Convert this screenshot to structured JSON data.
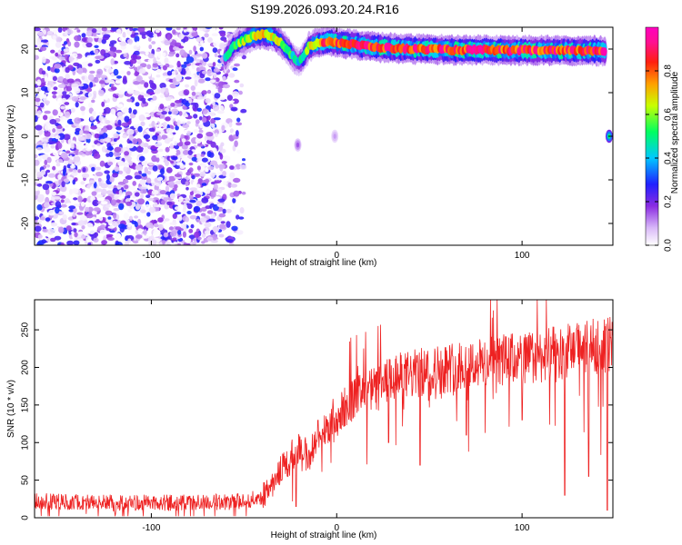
{
  "figure_title": "S199.2026.093.20.24.R16",
  "chart_data": [
    {
      "type": "heatmap",
      "title": "",
      "xlabel": "Height of straight line (km)",
      "ylabel": "Frequency (Hz)",
      "xlim": [
        -163,
        149
      ],
      "ylim": [
        -25,
        25
      ],
      "xticks": [
        -100,
        0,
        100
      ],
      "yticks": [
        -20,
        -10,
        0,
        10,
        20
      ],
      "colorbar": {
        "label": "Normalized spectral amplitude",
        "range": [
          0.0,
          1.0
        ],
        "ticks": [
          0.0,
          0.2,
          0.4,
          0.6,
          0.8
        ],
        "tick_labels": [
          "0.0",
          "0.2",
          "0.4",
          "0.6",
          "0.8"
        ],
        "colormap": "rainbow (violet-blue-cyan-green-yellow-red-magenta)"
      },
      "noise_region": {
        "x_range": [
          -163,
          -60
        ],
        "y_range": [
          -25,
          25
        ],
        "amplitude_range": [
          0.0,
          0.3
        ]
      },
      "signal_ridge": {
        "description": "narrow high-amplitude tone near 20 Hz",
        "x": [
          -60,
          -55,
          -50,
          -45,
          -40,
          -35,
          -30,
          -25,
          -21,
          -18,
          -15,
          -10,
          -5,
          0,
          10,
          20,
          30,
          40,
          50,
          60,
          70,
          80,
          90,
          100,
          110,
          120,
          130,
          140,
          145
        ],
        "y": [
          18,
          21,
          22,
          23,
          23.5,
          23,
          21.5,
          19,
          17,
          18,
          20.5,
          21.5,
          21.8,
          21.5,
          21,
          20.5,
          20.2,
          20,
          20,
          19.8,
          19.8,
          19.8,
          19.7,
          19.7,
          19.7,
          19.6,
          19.6,
          19.6,
          19.6
        ],
        "amplitude": [
          0.4,
          0.5,
          0.6,
          0.65,
          0.7,
          0.7,
          0.6,
          0.5,
          0.4,
          0.5,
          0.6,
          0.75,
          0.8,
          0.85,
          0.85,
          0.85,
          0.85,
          0.85,
          0.85,
          0.85,
          0.85,
          0.85,
          0.85,
          0.85,
          0.85,
          0.85,
          0.85,
          0.85,
          0.85
        ]
      },
      "point_sources": [
        {
          "x": 147,
          "y": 0,
          "amplitude": 0.5
        },
        {
          "x": -21,
          "y": -2,
          "amplitude": 0.15
        },
        {
          "x": -1,
          "y": 0,
          "amplitude": 0.1
        }
      ]
    },
    {
      "type": "line",
      "title": "",
      "xlabel": "Height of straight line (km)",
      "ylabel": "SNR (10 * v/v)",
      "xlim": [
        -163,
        149
      ],
      "ylim": [
        0,
        290
      ],
      "xticks": [
        -100,
        0,
        100
      ],
      "yticks": [
        0,
        50,
        100,
        150,
        200,
        250
      ],
      "color": "#ee2222",
      "trend": {
        "x": [
          -163,
          -140,
          -120,
          -100,
          -80,
          -60,
          -50,
          -40,
          -35,
          -30,
          -25,
          -20,
          -15,
          -10,
          -5,
          0,
          5,
          10,
          15,
          20,
          25,
          30,
          40,
          50,
          60,
          70,
          80,
          90,
          100,
          110,
          120,
          130,
          140,
          149
        ],
        "y": [
          22,
          21,
          20,
          20,
          20,
          21,
          22,
          28,
          45,
          65,
          80,
          95,
          80,
          110,
          115,
          130,
          150,
          158,
          165,
          170,
          175,
          185,
          190,
          195,
          200,
          205,
          205,
          210,
          212,
          215,
          220,
          225,
          228,
          232
        ]
      },
      "noise_amplitude": 12,
      "dip_events": [
        {
          "x": -22,
          "y": 15
        },
        {
          "x": 28,
          "y": 100
        },
        {
          "x": 45,
          "y": 70
        },
        {
          "x": 70,
          "y": 110
        },
        {
          "x": 100,
          "y": 130
        },
        {
          "x": 123,
          "y": 30
        },
        {
          "x": 136,
          "y": 55
        },
        {
          "x": 146,
          "y": 10
        }
      ],
      "max_value": 290
    }
  ]
}
